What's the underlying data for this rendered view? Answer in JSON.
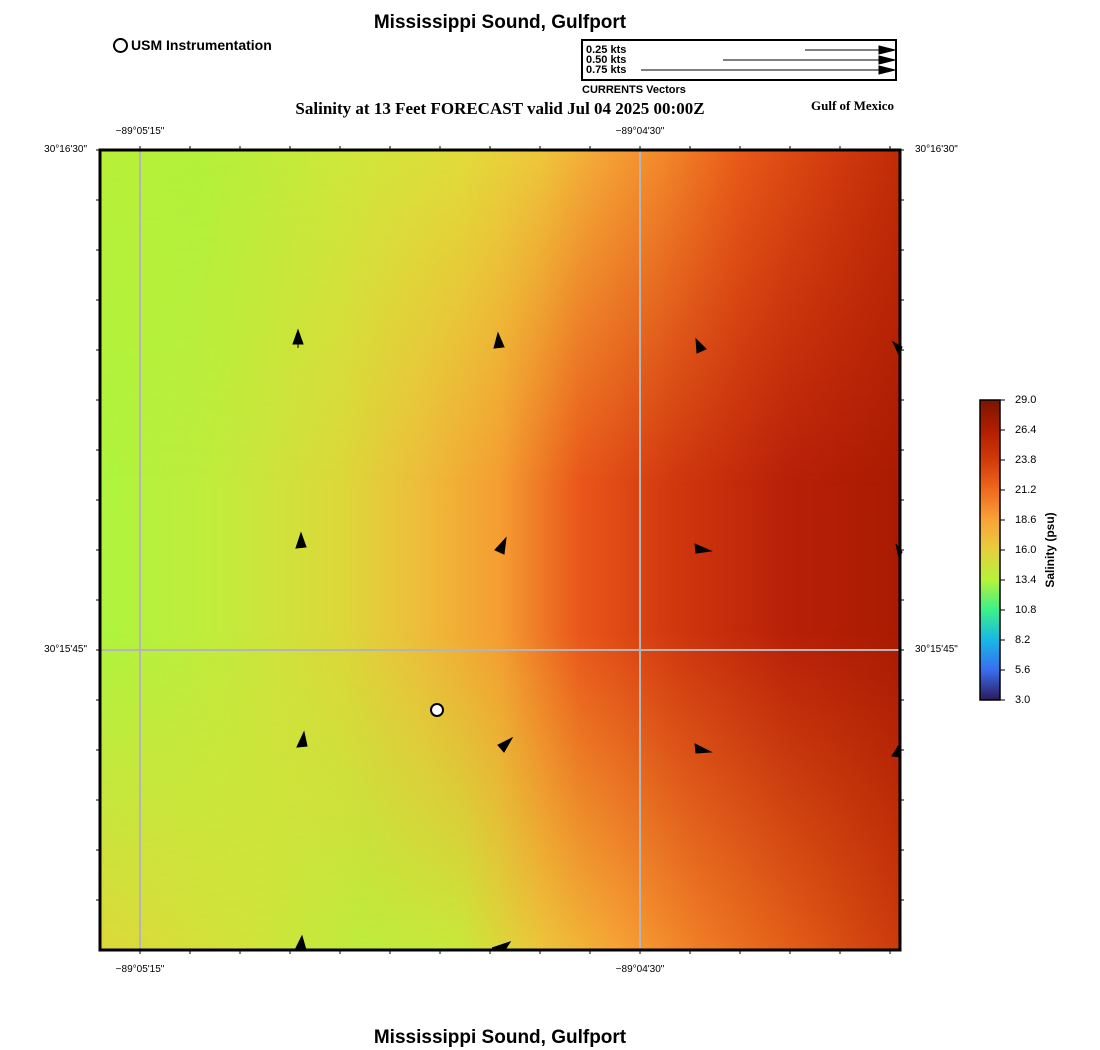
{
  "header": {
    "title": "Mississippi Sound, Gulfport"
  },
  "footer": {
    "title": "Mississippi Sound, Gulfport"
  },
  "legend": {
    "station_label": "USM Instrumentation",
    "vectors": [
      "0.25 kts",
      "0.50 kts",
      "0.75 kts"
    ],
    "vectors_title": "CURRENTS Vectors"
  },
  "map": {
    "subtitle": "Salinity at 13 Feet FORECAST valid Jul 04 2025 00:00Z",
    "region_label": "Gulf of Mexico",
    "lon_labels": [
      "−89°05'15\"",
      "−89°04'30\""
    ],
    "lat_labels": [
      "30°16'30\"",
      "30°15'45\""
    ]
  },
  "colorbar": {
    "title": "Salinity (psu)",
    "ticks": [
      "29.0",
      "26.4",
      "23.8",
      "21.2",
      "18.6",
      "16.0",
      "13.4",
      "10.8",
      "8.2",
      "5.6",
      "3.0"
    ],
    "colors": [
      "#7a1400",
      "#b01e00",
      "#d23a0a",
      "#ef6a1e",
      "#f9a33a",
      "#e6cf3c",
      "#b6f23c",
      "#3cf08a",
      "#18b7e6",
      "#3a6df0",
      "#2b1a5c"
    ]
  }
}
